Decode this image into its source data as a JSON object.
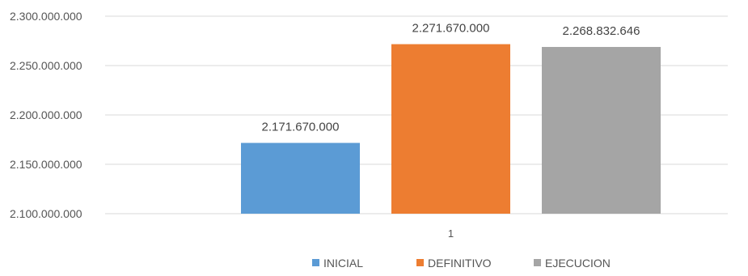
{
  "chart_data": {
    "type": "bar",
    "categories": [
      "1"
    ],
    "series": [
      {
        "name": "INICIAL",
        "values": [
          2171670000
        ],
        "label": "2.171.670.000",
        "color": "#5b9bd5"
      },
      {
        "name": "DEFINITIVO",
        "values": [
          2271670000
        ],
        "label": "2.271.670.000",
        "color": "#ed7d31"
      },
      {
        "name": "EJECUCION",
        "values": [
          2268832646
        ],
        "label": "2.268.832.646",
        "color": "#a5a5a5"
      }
    ],
    "ylim": [
      2100000000,
      2300000000
    ],
    "yticks": [
      {
        "value": 2100000000,
        "label": "2.100.000.000"
      },
      {
        "value": 2150000000,
        "label": "2.150.000.000"
      },
      {
        "value": 2200000000,
        "label": "2.200.000.000"
      },
      {
        "value": 2250000000,
        "label": "2.250.000.000"
      },
      {
        "value": 2300000000,
        "label": "2.300.000.000"
      }
    ],
    "grid": true,
    "legend_position": "bottom"
  }
}
